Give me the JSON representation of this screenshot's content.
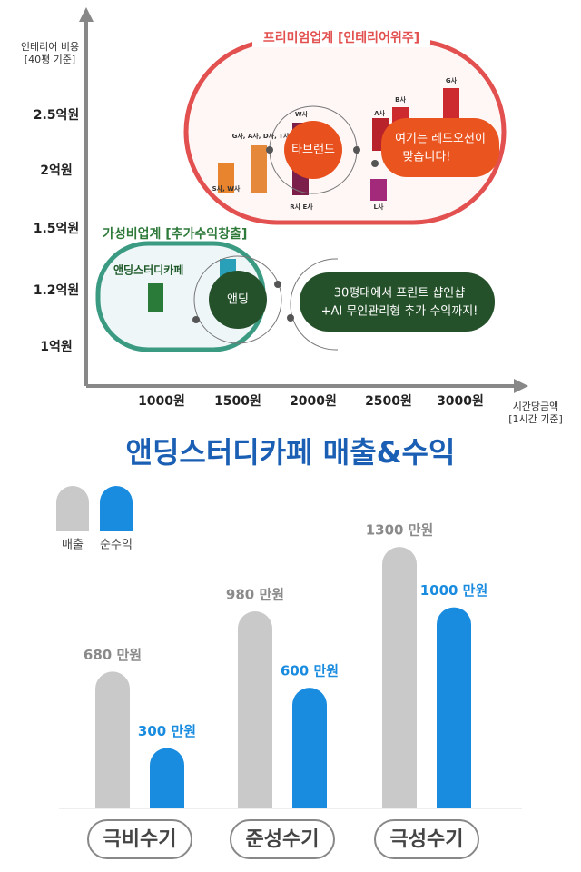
{
  "positioning": {
    "y_axis_title": [
      "인테리어 비용",
      "[40평 기준]"
    ],
    "x_axis_title": [
      "시간당금액",
      "[1시간 기준]"
    ],
    "y_labels": [
      "2.5억원",
      "2억원",
      "1.5억원",
      "1.2억원",
      "1억원"
    ],
    "x_labels": [
      "1000원",
      "1500원",
      "2000원",
      "2500원",
      "3000원"
    ],
    "premium": {
      "title": "프리미엄업계 [인테리어위주]",
      "bubble": "타브랜드",
      "callout": [
        "여기는 레드오션이",
        "맞습니다!"
      ],
      "brands": [
        "S사, W사",
        "G사, A사, D사, T사",
        "W사",
        "R사 E사",
        "A사",
        "B사",
        "G사",
        "L사"
      ]
    },
    "value": {
      "title": "가성비업계 [추가수익창출]",
      "brand": "앤딩스터디카페",
      "bubble": "앤딩",
      "callout": [
        "30평대에서 프린트 샵인샵",
        "+AI 무인관리형 추가 수익까지!"
      ]
    }
  },
  "chart_data": {
    "type": "bar",
    "title": "앤딩스터디카페 매출&수익",
    "categories": [
      "극비수기",
      "준성수기",
      "극성수기"
    ],
    "series": [
      {
        "name": "매출",
        "color": "#c9c9c9",
        "values": [
          680,
          980,
          1300
        ],
        "value_labels": [
          "680 만원",
          "980 만원",
          "1300 만원"
        ]
      },
      {
        "name": "순수익",
        "color": "#1a8ce0",
        "values": [
          300,
          600,
          1000
        ],
        "value_labels": [
          "300 만원",
          "600 만원",
          "1000 만원"
        ]
      }
    ],
    "ylim": [
      0,
      1400
    ]
  }
}
